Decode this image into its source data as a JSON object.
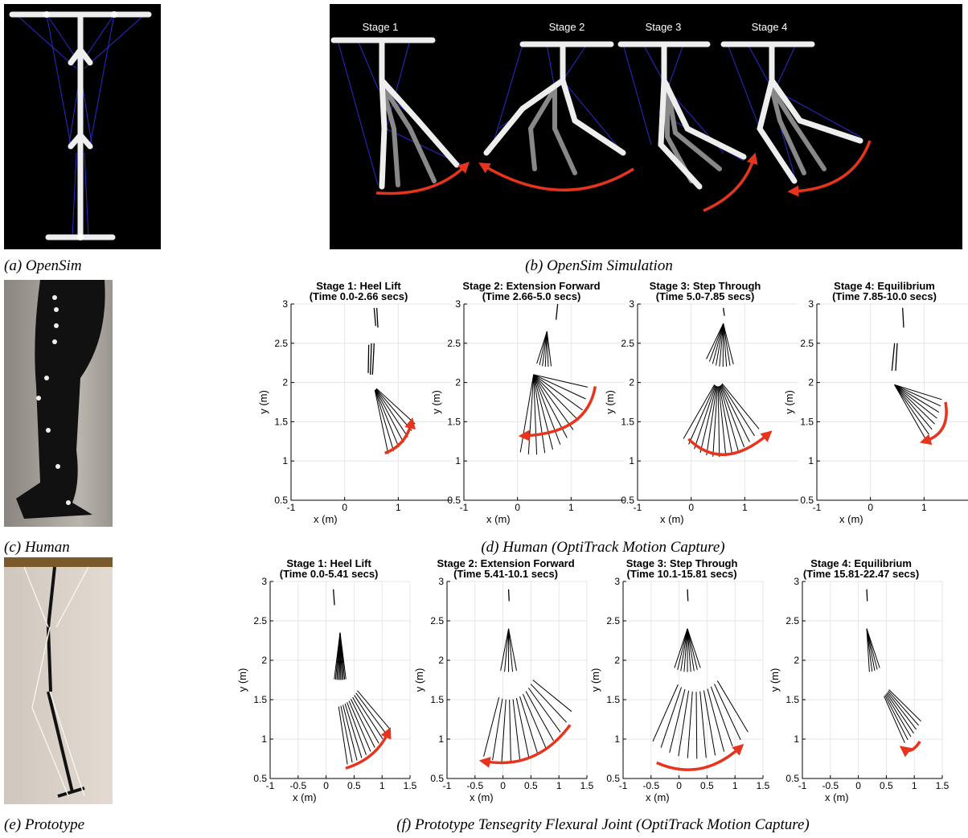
{
  "panels": {
    "a": {
      "caption": "(a) OpenSim"
    },
    "b": {
      "caption": "(b) OpenSim Simulation",
      "stages": [
        "Stage 1",
        "Stage 2",
        "Stage 3",
        "Stage 4"
      ]
    },
    "c": {
      "caption": "(c) Human"
    },
    "d": {
      "caption": "(d) Human (OptiTrack Motion Capture)",
      "plots": [
        {
          "title": "Stage 1: Heel Lift",
          "subtitle": "(Time 0.0-2.66 secs)",
          "xlabel": "x (m)",
          "ylabel": "y (m)",
          "xlim": [
            -1,
            2
          ],
          "ylim": [
            0.5,
            3
          ],
          "xticks": [
            -1,
            0,
            1
          ],
          "yticks": [
            0.5,
            1,
            1.5,
            2,
            2.5,
            3
          ]
        },
        {
          "title": "Stage 2: Extension Forward",
          "subtitle": "(Time 2.66-5.0 secs)",
          "xlabel": "x (m)",
          "ylabel": "y (m)",
          "xlim": [
            -1,
            2
          ],
          "ylim": [
            0.5,
            3
          ],
          "xticks": [
            -1,
            0,
            1
          ],
          "yticks": [
            0.5,
            1,
            1.5,
            2,
            2.5,
            3
          ]
        },
        {
          "title": "Stage 3: Step Through",
          "subtitle": "(Time 5.0-7.85 secs)",
          "xlabel": "x (m)",
          "ylabel": "y (m)",
          "xlim": [
            -1,
            2
          ],
          "ylim": [
            0.5,
            3
          ],
          "xticks": [
            -1,
            0,
            1
          ],
          "yticks": [
            0.5,
            1,
            1.5,
            2,
            2.5,
            3
          ]
        },
        {
          "title": "Stage 4: Equilibrium",
          "subtitle": "(Time 7.85-10.0 secs)",
          "xlabel": "x (m)",
          "ylabel": "y (m)",
          "xlim": [
            -1,
            2
          ],
          "ylim": [
            0.5,
            3
          ],
          "xticks": [
            -1,
            0,
            1
          ],
          "yticks": [
            0.5,
            1,
            1.5,
            2,
            2.5,
            3
          ]
        }
      ]
    },
    "e": {
      "caption": "(e) Prototype"
    },
    "f": {
      "caption": "(f) Prototype Tensegrity Flexural Joint (OptiTrack Motion Capture)",
      "plots": [
        {
          "title": "Stage 1: Heel Lift",
          "subtitle": "(Time 0.0-5.41 secs)",
          "xlabel": "x (m)",
          "ylabel": "y (m)",
          "xlim": [
            -1,
            1.5
          ],
          "ylim": [
            0.5,
            3
          ],
          "xticks": [
            -1,
            -0.5,
            0,
            0.5,
            1,
            1.5
          ],
          "yticks": [
            0.5,
            1,
            1.5,
            2,
            2.5,
            3
          ]
        },
        {
          "title": "Stage 2: Extension Forward",
          "subtitle": "(Time 5.41-10.1 secs)",
          "xlabel": "x (m)",
          "ylabel": "y (m)",
          "xlim": [
            -1,
            1.5
          ],
          "ylim": [
            0.5,
            3
          ],
          "xticks": [
            -1,
            -0.5,
            0,
            0.5,
            1,
            1.5
          ],
          "yticks": [
            0.5,
            1,
            1.5,
            2,
            2.5,
            3
          ]
        },
        {
          "title": "Stage 3: Step Through",
          "subtitle": "(Time 10.1-15.81 secs)",
          "xlabel": "x (m)",
          "ylabel": "y (m)",
          "xlim": [
            -1,
            1.5
          ],
          "ylim": [
            0.5,
            3
          ],
          "xticks": [
            -1,
            -0.5,
            0,
            0.5,
            1,
            1.5
          ],
          "yticks": [
            0.5,
            1,
            1.5,
            2,
            2.5,
            3
          ]
        },
        {
          "title": "Stage 4: Equilibrium",
          "subtitle": "(Time 15.81-22.47 secs)",
          "xlabel": "x (m)",
          "ylabel": "y (m)",
          "xlim": [
            -1,
            1.5
          ],
          "ylim": [
            0.5,
            3
          ],
          "xticks": [
            -1,
            -0.5,
            0,
            0.5,
            1,
            1.5
          ],
          "yticks": [
            0.5,
            1,
            1.5,
            2,
            2.5,
            3
          ]
        }
      ]
    }
  }
}
